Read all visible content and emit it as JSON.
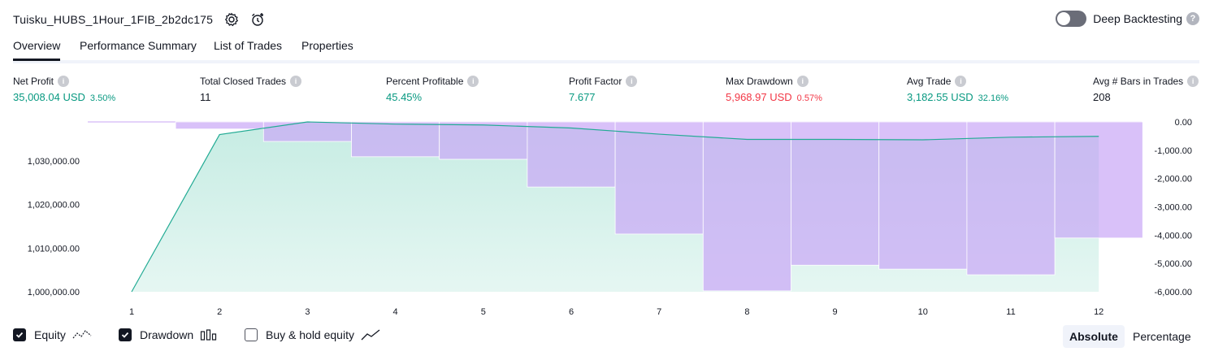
{
  "header": {
    "title": "Tuisku_HUBS_1Hour_1FIB_2b2dc175",
    "deep_backtesting_label": "Deep Backtesting",
    "help_glyph": "?"
  },
  "tabs": [
    {
      "label": "Overview",
      "active": true
    },
    {
      "label": "Performance Summary",
      "active": false
    },
    {
      "label": "List of Trades",
      "active": false
    },
    {
      "label": "Properties",
      "active": false
    }
  ],
  "metrics": [
    {
      "label": "Net Profit",
      "value": "35,008.04 USD",
      "pct": "3.50%",
      "color": "#089981"
    },
    {
      "label": "Total Closed Trades",
      "value": "11",
      "pct": "",
      "color": "#131722"
    },
    {
      "label": "Percent Profitable",
      "value": "45.45%",
      "pct": "",
      "color": "#089981"
    },
    {
      "label": "Profit Factor",
      "value": "7.677",
      "pct": "",
      "color": "#089981"
    },
    {
      "label": "Max Drawdown",
      "value": "5,968.97 USD",
      "pct": "0.57%",
      "color": "#f23645"
    },
    {
      "label": "Avg Trade",
      "value": "3,182.55 USD",
      "pct": "32.16%",
      "color": "#089981"
    },
    {
      "label": "Avg # Bars in Trades",
      "value": "208",
      "pct": "",
      "color": "#131722"
    }
  ],
  "info_glyph": "i",
  "chart_data": {
    "type": "area",
    "x": [
      1,
      2,
      3,
      4,
      5,
      6,
      7,
      8,
      9,
      10,
      11,
      12
    ],
    "series": [
      {
        "name": "Equity",
        "axis": "left",
        "type": "area",
        "values": [
          1000000,
          1036000,
          1038900,
          1038400,
          1038200,
          1037500,
          1036100,
          1034900,
          1034900,
          1034800,
          1035400,
          1035600
        ]
      },
      {
        "name": "Drawdown",
        "axis": "right",
        "type": "bar",
        "values": [
          0,
          -250,
          -690,
          -1230,
          -1320,
          -2300,
          -3960,
          -5969,
          -5060,
          -5200,
          -5400,
          -4100
        ]
      }
    ],
    "left_axis": {
      "ticks": [
        "1,030,000.00",
        "1,020,000.00",
        "1,010,000.00",
        "1,000,000.00"
      ],
      "range": [
        1000000,
        1038900
      ]
    },
    "right_axis": {
      "ticks": [
        "0.00",
        "-1,000.00",
        "-2,000.00",
        "-3,000.00",
        "-4,000.00",
        "-5,000.00",
        "-6,000.00"
      ],
      "range": [
        -6000,
        0
      ]
    },
    "x_ticks": [
      "1",
      "2",
      "3",
      "4",
      "5",
      "6",
      "7",
      "8",
      "9",
      "10",
      "11",
      "12"
    ],
    "colors": {
      "equity_line": "#22ab94",
      "equity_fill": "#c6ece3",
      "drawdown_bar": "#c9a6f6",
      "overlap": "#aab8e0"
    }
  },
  "legend": {
    "items": [
      {
        "label": "Equity",
        "checked": true
      },
      {
        "label": "Drawdown",
        "checked": true
      },
      {
        "label": "Buy & hold equity",
        "checked": false
      }
    ],
    "absolute_label": "Absolute",
    "percentage_label": "Percentage"
  }
}
